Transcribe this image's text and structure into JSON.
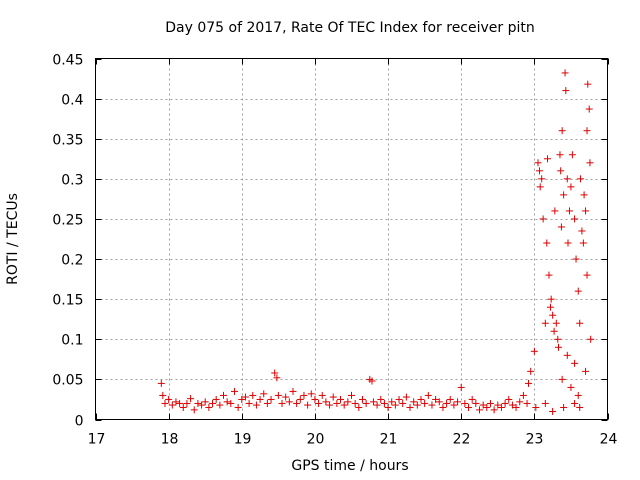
{
  "chart_data": {
    "type": "scatter",
    "title": "Day 075 of 2017, Rate Of TEC Index for receiver pitn",
    "xlabel": "GPS time / hours",
    "ylabel": "ROTI / TECUs",
    "xlim": [
      17,
      24
    ],
    "ylim": [
      0,
      0.45
    ],
    "x_ticks": [
      "17",
      "18",
      "19",
      "20",
      "21",
      "22",
      "23",
      "24"
    ],
    "y_ticks": [
      "0",
      "0.05",
      "0.1",
      "0.15",
      "0.2",
      "0.25",
      "0.3",
      "0.35",
      "0.4",
      "0.45"
    ],
    "grid": true,
    "marker": "+",
    "color": "#e00000",
    "series": [
      {
        "points": [
          [
            17.9,
            0.045
          ],
          [
            17.92,
            0.03
          ],
          [
            17.95,
            0.02
          ],
          [
            18.0,
            0.025
          ],
          [
            18.05,
            0.018
          ],
          [
            18.1,
            0.022
          ],
          [
            18.15,
            0.02
          ],
          [
            18.2,
            0.015
          ],
          [
            18.25,
            0.02
          ],
          [
            18.3,
            0.026
          ],
          [
            18.35,
            0.012
          ],
          [
            18.4,
            0.02
          ],
          [
            18.45,
            0.018
          ],
          [
            18.5,
            0.022
          ],
          [
            18.55,
            0.015
          ],
          [
            18.6,
            0.02
          ],
          [
            18.65,
            0.025
          ],
          [
            18.7,
            0.018
          ],
          [
            18.75,
            0.03
          ],
          [
            18.8,
            0.022
          ],
          [
            18.85,
            0.02
          ],
          [
            18.9,
            0.035
          ],
          [
            18.95,
            0.015
          ],
          [
            19.0,
            0.025
          ],
          [
            19.05,
            0.028
          ],
          [
            19.1,
            0.02
          ],
          [
            19.15,
            0.03
          ],
          [
            19.2,
            0.018
          ],
          [
            19.25,
            0.025
          ],
          [
            19.3,
            0.032
          ],
          [
            19.35,
            0.02
          ],
          [
            19.4,
            0.025
          ],
          [
            19.45,
            0.058
          ],
          [
            19.48,
            0.052
          ],
          [
            19.5,
            0.03
          ],
          [
            19.55,
            0.02
          ],
          [
            19.6,
            0.028
          ],
          [
            19.65,
            0.022
          ],
          [
            19.7,
            0.035
          ],
          [
            19.75,
            0.02
          ],
          [
            19.8,
            0.025
          ],
          [
            19.85,
            0.03
          ],
          [
            19.9,
            0.018
          ],
          [
            19.95,
            0.032
          ],
          [
            20.0,
            0.025
          ],
          [
            20.05,
            0.02
          ],
          [
            20.1,
            0.03
          ],
          [
            20.15,
            0.022
          ],
          [
            20.2,
            0.018
          ],
          [
            20.25,
            0.028
          ],
          [
            20.3,
            0.02
          ],
          [
            20.35,
            0.025
          ],
          [
            20.4,
            0.018
          ],
          [
            20.45,
            0.022
          ],
          [
            20.5,
            0.03
          ],
          [
            20.55,
            0.02
          ],
          [
            20.6,
            0.015
          ],
          [
            20.65,
            0.025
          ],
          [
            20.7,
            0.02
          ],
          [
            20.75,
            0.05
          ],
          [
            20.78,
            0.048
          ],
          [
            20.8,
            0.022
          ],
          [
            20.85,
            0.018
          ],
          [
            20.9,
            0.025
          ],
          [
            20.95,
            0.02
          ],
          [
            21.0,
            0.015
          ],
          [
            21.05,
            0.022
          ],
          [
            21.1,
            0.018
          ],
          [
            21.15,
            0.025
          ],
          [
            21.2,
            0.02
          ],
          [
            21.25,
            0.028
          ],
          [
            21.3,
            0.015
          ],
          [
            21.35,
            0.022
          ],
          [
            21.4,
            0.018
          ],
          [
            21.45,
            0.025
          ],
          [
            21.5,
            0.02
          ],
          [
            21.55,
            0.03
          ],
          [
            21.6,
            0.018
          ],
          [
            21.65,
            0.025
          ],
          [
            21.7,
            0.022
          ],
          [
            21.75,
            0.015
          ],
          [
            21.8,
            0.02
          ],
          [
            21.85,
            0.025
          ],
          [
            21.9,
            0.018
          ],
          [
            21.95,
            0.022
          ],
          [
            22.0,
            0.04
          ],
          [
            22.05,
            0.02
          ],
          [
            22.1,
            0.015
          ],
          [
            22.15,
            0.025
          ],
          [
            22.2,
            0.02
          ],
          [
            22.25,
            0.012
          ],
          [
            22.3,
            0.018
          ],
          [
            22.35,
            0.015
          ],
          [
            22.4,
            0.02
          ],
          [
            22.45,
            0.012
          ],
          [
            22.5,
            0.018
          ],
          [
            22.55,
            0.015
          ],
          [
            22.6,
            0.02
          ],
          [
            22.65,
            0.025
          ],
          [
            22.7,
            0.018
          ],
          [
            22.75,
            0.015
          ],
          [
            22.8,
            0.022
          ],
          [
            22.85,
            0.03
          ],
          [
            22.9,
            0.02
          ],
          [
            22.92,
            0.045
          ],
          [
            22.95,
            0.06
          ],
          [
            23.0,
            0.085
          ],
          [
            23.02,
            0.015
          ],
          [
            23.05,
            0.32
          ],
          [
            23.07,
            0.31
          ],
          [
            23.08,
            0.29
          ],
          [
            23.1,
            0.3
          ],
          [
            23.12,
            0.25
          ],
          [
            23.15,
            0.12
          ],
          [
            23.17,
            0.22
          ],
          [
            23.18,
            0.325
          ],
          [
            23.2,
            0.18
          ],
          [
            23.22,
            0.14
          ],
          [
            23.23,
            0.15
          ],
          [
            23.25,
            0.13
          ],
          [
            23.27,
            0.11
          ],
          [
            23.28,
            0.26
          ],
          [
            23.3,
            0.12
          ],
          [
            23.32,
            0.1
          ],
          [
            23.35,
            0.33
          ],
          [
            23.36,
            0.31
          ],
          [
            23.37,
            0.24
          ],
          [
            23.38,
            0.36
          ],
          [
            23.4,
            0.28
          ],
          [
            23.42,
            0.432
          ],
          [
            23.43,
            0.41
          ],
          [
            23.45,
            0.3
          ],
          [
            23.46,
            0.22
          ],
          [
            23.48,
            0.26
          ],
          [
            23.5,
            0.29
          ],
          [
            23.52,
            0.33
          ],
          [
            23.55,
            0.25
          ],
          [
            23.57,
            0.2
          ],
          [
            23.6,
            0.16
          ],
          [
            23.62,
            0.12
          ],
          [
            23.63,
            0.3
          ],
          [
            23.65,
            0.235
          ],
          [
            23.67,
            0.22
          ],
          [
            23.68,
            0.28
          ],
          [
            23.7,
            0.26
          ],
          [
            23.72,
            0.36
          ],
          [
            23.73,
            0.418
          ],
          [
            23.75,
            0.387
          ],
          [
            23.76,
            0.32
          ],
          [
            23.77,
            0.1
          ],
          [
            23.33,
            0.09
          ],
          [
            23.38,
            0.05
          ],
          [
            23.45,
            0.08
          ],
          [
            23.5,
            0.04
          ],
          [
            23.55,
            0.02
          ],
          [
            23.6,
            0.03
          ],
          [
            23.15,
            0.02
          ],
          [
            23.25,
            0.01
          ],
          [
            23.4,
            0.015
          ],
          [
            23.7,
            0.06
          ],
          [
            23.72,
            0.18
          ],
          [
            23.55,
            0.07
          ],
          [
            23.62,
            0.015
          ]
        ]
      }
    ]
  }
}
